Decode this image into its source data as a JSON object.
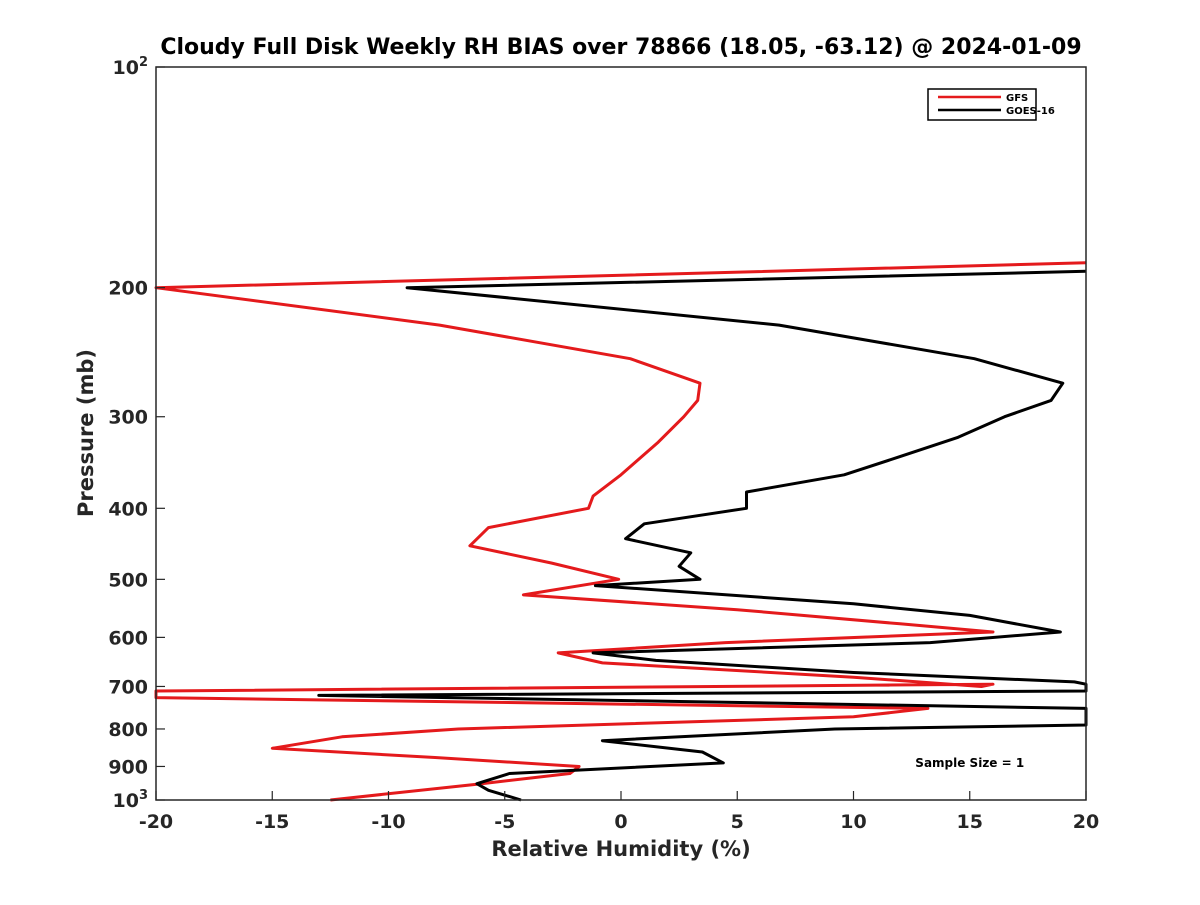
{
  "chart_data": {
    "type": "line",
    "title": "Cloudy Full Disk Weekly RH BIAS over 78866 (18.05, -63.12) @ 2024-01-09",
    "xlabel": "Relative Humidity (%)",
    "ylabel": "Pressure (mb)",
    "xlim": [
      -20,
      20
    ],
    "ylim": [
      100,
      1000
    ],
    "yscale": "log",
    "y_reversed": true,
    "grid": false,
    "legend_location": "top-right",
    "x_ticks": [
      "-20",
      "-15",
      "-10",
      "-5",
      "0",
      "5",
      "10",
      "15",
      "20"
    ],
    "x_tick_values": [
      -20,
      -15,
      -10,
      -5,
      0,
      5,
      10,
      15,
      20
    ],
    "y_ticks": [
      {
        "value": 100,
        "base": "10",
        "exp": "2"
      },
      {
        "value": 200,
        "label": "200"
      },
      {
        "value": 300,
        "label": "300"
      },
      {
        "value": 400,
        "label": "400"
      },
      {
        "value": 500,
        "label": "500"
      },
      {
        "value": 600,
        "label": "600"
      },
      {
        "value": 700,
        "label": "700"
      },
      {
        "value": 800,
        "label": "800"
      },
      {
        "value": 900,
        "label": "900"
      },
      {
        "value": 1000,
        "base": "10",
        "exp": "3"
      }
    ],
    "series": [
      {
        "name": "GFS",
        "color": "#e41a1c",
        "points": [
          [
            20,
            185
          ],
          [
            -20,
            200
          ],
          [
            -7.8,
            225
          ],
          [
            0.4,
            250
          ],
          [
            3.4,
            270
          ],
          [
            3.3,
            285
          ],
          [
            2.7,
            300
          ],
          [
            1.6,
            325
          ],
          [
            0,
            360
          ],
          [
            -1.2,
            385
          ],
          [
            -1.4,
            400
          ],
          [
            -5.7,
            425
          ],
          [
            -6.5,
            450
          ],
          [
            -3,
            475
          ],
          [
            -0.1,
            500
          ],
          [
            -4.2,
            525
          ],
          [
            5,
            550
          ],
          [
            12,
            575
          ],
          [
            16,
            590
          ],
          [
            4.5,
            610
          ],
          [
            -2.7,
            630
          ],
          [
            -0.8,
            650
          ],
          [
            10,
            680
          ],
          [
            15.5,
            700
          ],
          [
            16,
            695
          ],
          [
            -20,
            710
          ],
          [
            -20,
            725
          ],
          [
            13.2,
            750
          ],
          [
            10,
            770
          ],
          [
            -7,
            800
          ],
          [
            -12,
            820
          ],
          [
            -15,
            850
          ],
          [
            -8,
            875
          ],
          [
            -1.8,
            900
          ],
          [
            -2.2,
            920
          ],
          [
            -6,
            950
          ],
          [
            -12.5,
            1000
          ]
        ]
      },
      {
        "name": "GOES-16",
        "color": "#000000",
        "points": [
          [
            20,
            190
          ],
          [
            -9.2,
            200
          ],
          [
            6.8,
            225
          ],
          [
            15.2,
            250
          ],
          [
            19,
            270
          ],
          [
            18.5,
            285
          ],
          [
            16.5,
            300
          ],
          [
            14.5,
            320
          ],
          [
            12,
            340
          ],
          [
            9.6,
            360
          ],
          [
            5.4,
            380
          ],
          [
            5.4,
            400
          ],
          [
            1,
            420
          ],
          [
            0.2,
            440
          ],
          [
            3,
            460
          ],
          [
            2.5,
            480
          ],
          [
            3.4,
            500
          ],
          [
            -1.1,
            510
          ],
          [
            10,
            540
          ],
          [
            15,
            560
          ],
          [
            18.9,
            590
          ],
          [
            13.3,
            610
          ],
          [
            -1.2,
            630
          ],
          [
            1.5,
            645
          ],
          [
            10,
            670
          ],
          [
            19.5,
            690
          ],
          [
            20,
            695
          ],
          [
            20,
            710
          ],
          [
            -13,
            720
          ],
          [
            20,
            750
          ],
          [
            20,
            790
          ],
          [
            9.2,
            800
          ],
          [
            -0.8,
            830
          ],
          [
            3.5,
            860
          ],
          [
            4.4,
            890
          ],
          [
            -4.8,
            920
          ],
          [
            -6.2,
            950
          ],
          [
            -5.7,
            970
          ],
          [
            -4.3,
            1000
          ]
        ]
      }
    ],
    "annotations": [
      {
        "text": "Sample Size = 1",
        "x": 15,
        "pressure": 890
      }
    ]
  }
}
